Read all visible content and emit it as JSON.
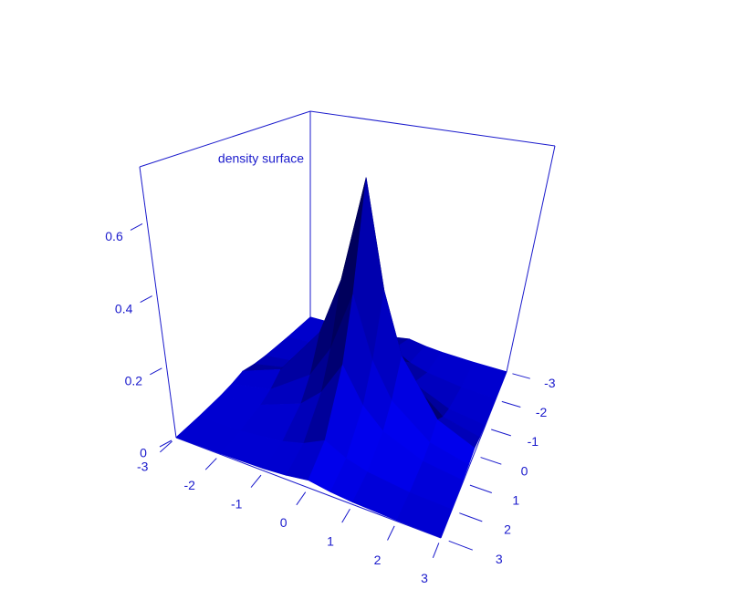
{
  "chart_data": {
    "type": "surface3d",
    "title": "density surface",
    "x": [
      -3,
      -2,
      -1,
      -0.5,
      0,
      0.5,
      1,
      2,
      3
    ],
    "y": [
      -3,
      -2,
      -1,
      -0.5,
      0,
      0.5,
      1,
      2,
      3
    ],
    "z": [
      [
        0.001,
        0.002,
        0.006,
        0.011,
        0.02,
        0.011,
        0.006,
        0.002,
        0.001
      ],
      [
        0.002,
        0.006,
        0.02,
        0.036,
        0.065,
        0.036,
        0.02,
        0.006,
        0.002
      ],
      [
        0.006,
        0.02,
        0.065,
        0.119,
        0.217,
        0.119,
        0.065,
        0.02,
        0.006
      ],
      [
        0.011,
        0.036,
        0.119,
        0.217,
        0.395,
        0.217,
        0.119,
        0.036,
        0.011
      ],
      [
        0.02,
        0.065,
        0.217,
        0.395,
        0.72,
        0.395,
        0.217,
        0.065,
        0.02
      ],
      [
        0.011,
        0.036,
        0.119,
        0.217,
        0.395,
        0.217,
        0.119,
        0.036,
        0.011
      ],
      [
        0.006,
        0.02,
        0.065,
        0.119,
        0.217,
        0.119,
        0.065,
        0.02,
        0.006
      ],
      [
        0.002,
        0.006,
        0.02,
        0.036,
        0.065,
        0.036,
        0.02,
        0.006,
        0.002
      ],
      [
        0.001,
        0.002,
        0.006,
        0.011,
        0.02,
        0.011,
        0.006,
        0.002,
        0.001
      ]
    ],
    "xlim": [
      -3,
      3
    ],
    "ylim": [
      -3,
      3
    ],
    "zlim": [
      0,
      0.75
    ],
    "xticks": [
      -3,
      -2,
      -1,
      0,
      1,
      2,
      3
    ],
    "yticks": [
      -3,
      -2,
      -1,
      0,
      1,
      2,
      3
    ],
    "zticks": [
      0,
      0.2,
      0.4,
      0.6
    ],
    "color": "#0000ff",
    "axis_color": "#1a1acc"
  }
}
